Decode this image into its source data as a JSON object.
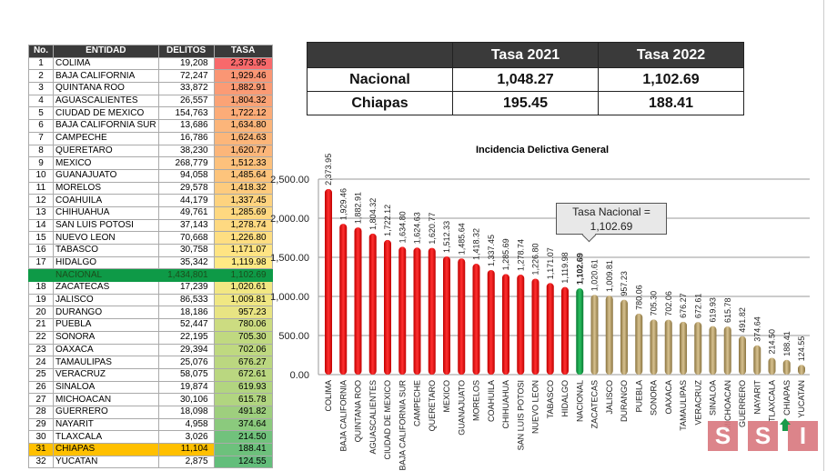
{
  "ranking": {
    "headers": [
      "No.",
      "ENTIDAD",
      "DELITOS",
      "TASA"
    ],
    "rows": [
      [
        "1",
        "COLIMA",
        "19,208",
        "2,373.95"
      ],
      [
        "2",
        "BAJA CALIFORNIA",
        "72,247",
        "1,929.46"
      ],
      [
        "3",
        "QUINTANA ROO",
        "33,872",
        "1,882.91"
      ],
      [
        "4",
        "AGUASCALIENTES",
        "26,557",
        "1,804.32"
      ],
      [
        "5",
        "CIUDAD DE MEXICO",
        "154,763",
        "1,722.12"
      ],
      [
        "6",
        "BAJA CALIFORNIA SUR",
        "13,686",
        "1,634.80"
      ],
      [
        "7",
        "CAMPECHE",
        "16,786",
        "1,624.63"
      ],
      [
        "8",
        "QUERETARO",
        "38,230",
        "1,620.77"
      ],
      [
        "9",
        "MEXICO",
        "268,779",
        "1,512.33"
      ],
      [
        "10",
        "GUANAJUATO",
        "94,058",
        "1,485.64"
      ],
      [
        "11",
        "MORELOS",
        "29,578",
        "1,418.32"
      ],
      [
        "12",
        "COAHUILA",
        "44,179",
        "1,337.45"
      ],
      [
        "13",
        "CHIHUAHUA",
        "49,761",
        "1,285.69"
      ],
      [
        "14",
        "SAN LUIS POTOSI",
        "37,143",
        "1,278.74"
      ],
      [
        "15",
        "NUEVO LEON",
        "70,668",
        "1,226.80"
      ],
      [
        "16",
        "TABASCO",
        "30,758",
        "1,171.07"
      ],
      [
        "17",
        "HIDALGO",
        "35,342",
        "1,119.98"
      ],
      [
        "",
        "NACIONAL",
        "1,434,801",
        "1,102.69"
      ],
      [
        "18",
        "ZACATECAS",
        "17,239",
        "1,020.61"
      ],
      [
        "19",
        "JALISCO",
        "86,533",
        "1,009.81"
      ],
      [
        "20",
        "DURANGO",
        "18,186",
        "957.23"
      ],
      [
        "21",
        "PUEBLA",
        "52,447",
        "780.06"
      ],
      [
        "22",
        "SONORA",
        "22,195",
        "705.30"
      ],
      [
        "23",
        "OAXACA",
        "29,394",
        "702.06"
      ],
      [
        "24",
        "TAMAULIPAS",
        "25,076",
        "676.27"
      ],
      [
        "25",
        "VERACRUZ",
        "58,075",
        "672.61"
      ],
      [
        "26",
        "SINALOA",
        "19,874",
        "619.93"
      ],
      [
        "27",
        "MICHOACAN",
        "30,106",
        "615.78"
      ],
      [
        "28",
        "GUERRERO",
        "18,098",
        "491.82"
      ],
      [
        "29",
        "NAYARIT",
        "4,958",
        "374.64"
      ],
      [
        "30",
        "TLAXCALA",
        "3,026",
        "214.50"
      ],
      [
        "31",
        "CHIAPAS",
        "11,104",
        "188.41"
      ],
      [
        "32",
        "YUCATAN",
        "2,875",
        "124.55"
      ]
    ]
  },
  "comparison": {
    "headers": [
      "",
      "Tasa 2021",
      "Tasa 2022"
    ],
    "rows": [
      [
        "Nacional",
        "1,048.27",
        "1,102.69"
      ],
      [
        "Chiapas",
        "195.45",
        "188.41"
      ]
    ]
  },
  "chart_data": {
    "type": "bar",
    "title": "Incidencia Delictiva General",
    "categories": [
      "COLIMA",
      "BAJA CALIFORNIA",
      "QUINTANA ROO",
      "AGUASCALIENTES",
      "CIUDAD DE MEXICO",
      "BAJA CALIFORNIA SUR",
      "CAMPECHE",
      "QUERETARO",
      "MEXICO",
      "GUANAJUATO",
      "MORELOS",
      "COAHUILA",
      "CHIHUAHUA",
      "SAN LUIS POTOSI",
      "NUEVO LEON",
      "TABASCO",
      "HIDALGO",
      "NACIONAL",
      "ZACATECAS",
      "JALISCO",
      "DURANGO",
      "PUEBLA",
      "SONORA",
      "OAXACA",
      "TAMAULIPAS",
      "VERACRUZ",
      "SINALOA",
      "MICHOACAN",
      "GUERRERO",
      "NAYARIT",
      "TLAXCALA",
      "CHIAPAS",
      "YUCATAN"
    ],
    "values": [
      2373.95,
      1929.46,
      1882.91,
      1804.32,
      1722.12,
      1634.8,
      1624.63,
      1620.77,
      1512.33,
      1485.64,
      1418.32,
      1337.45,
      1285.69,
      1278.74,
      1226.8,
      1171.07,
      1119.98,
      1102.69,
      1020.61,
      1009.81,
      957.23,
      780.06,
      705.3,
      702.06,
      676.27,
      672.61,
      619.93,
      615.78,
      491.82,
      374.64,
      214.5,
      188.41,
      124.55
    ],
    "ylim": [
      0,
      2500
    ],
    "yticks": [
      "0.00",
      "500.00",
      "1,000.00",
      "1,500.00",
      "2,000.00",
      "2,500.00"
    ],
    "grid": true,
    "colors": {
      "above": "#ff0000",
      "national": "#0e9a47",
      "below": "#b49a62"
    },
    "annotation": {
      "line1": "Tasa Nacional =",
      "line2": "1,102.69"
    }
  },
  "highlight": {
    "chiapas_row_color": "#ffc000",
    "arrow_color": "#1a9a4a"
  },
  "logo": {
    "letters": [
      "S",
      "S",
      "I"
    ]
  }
}
